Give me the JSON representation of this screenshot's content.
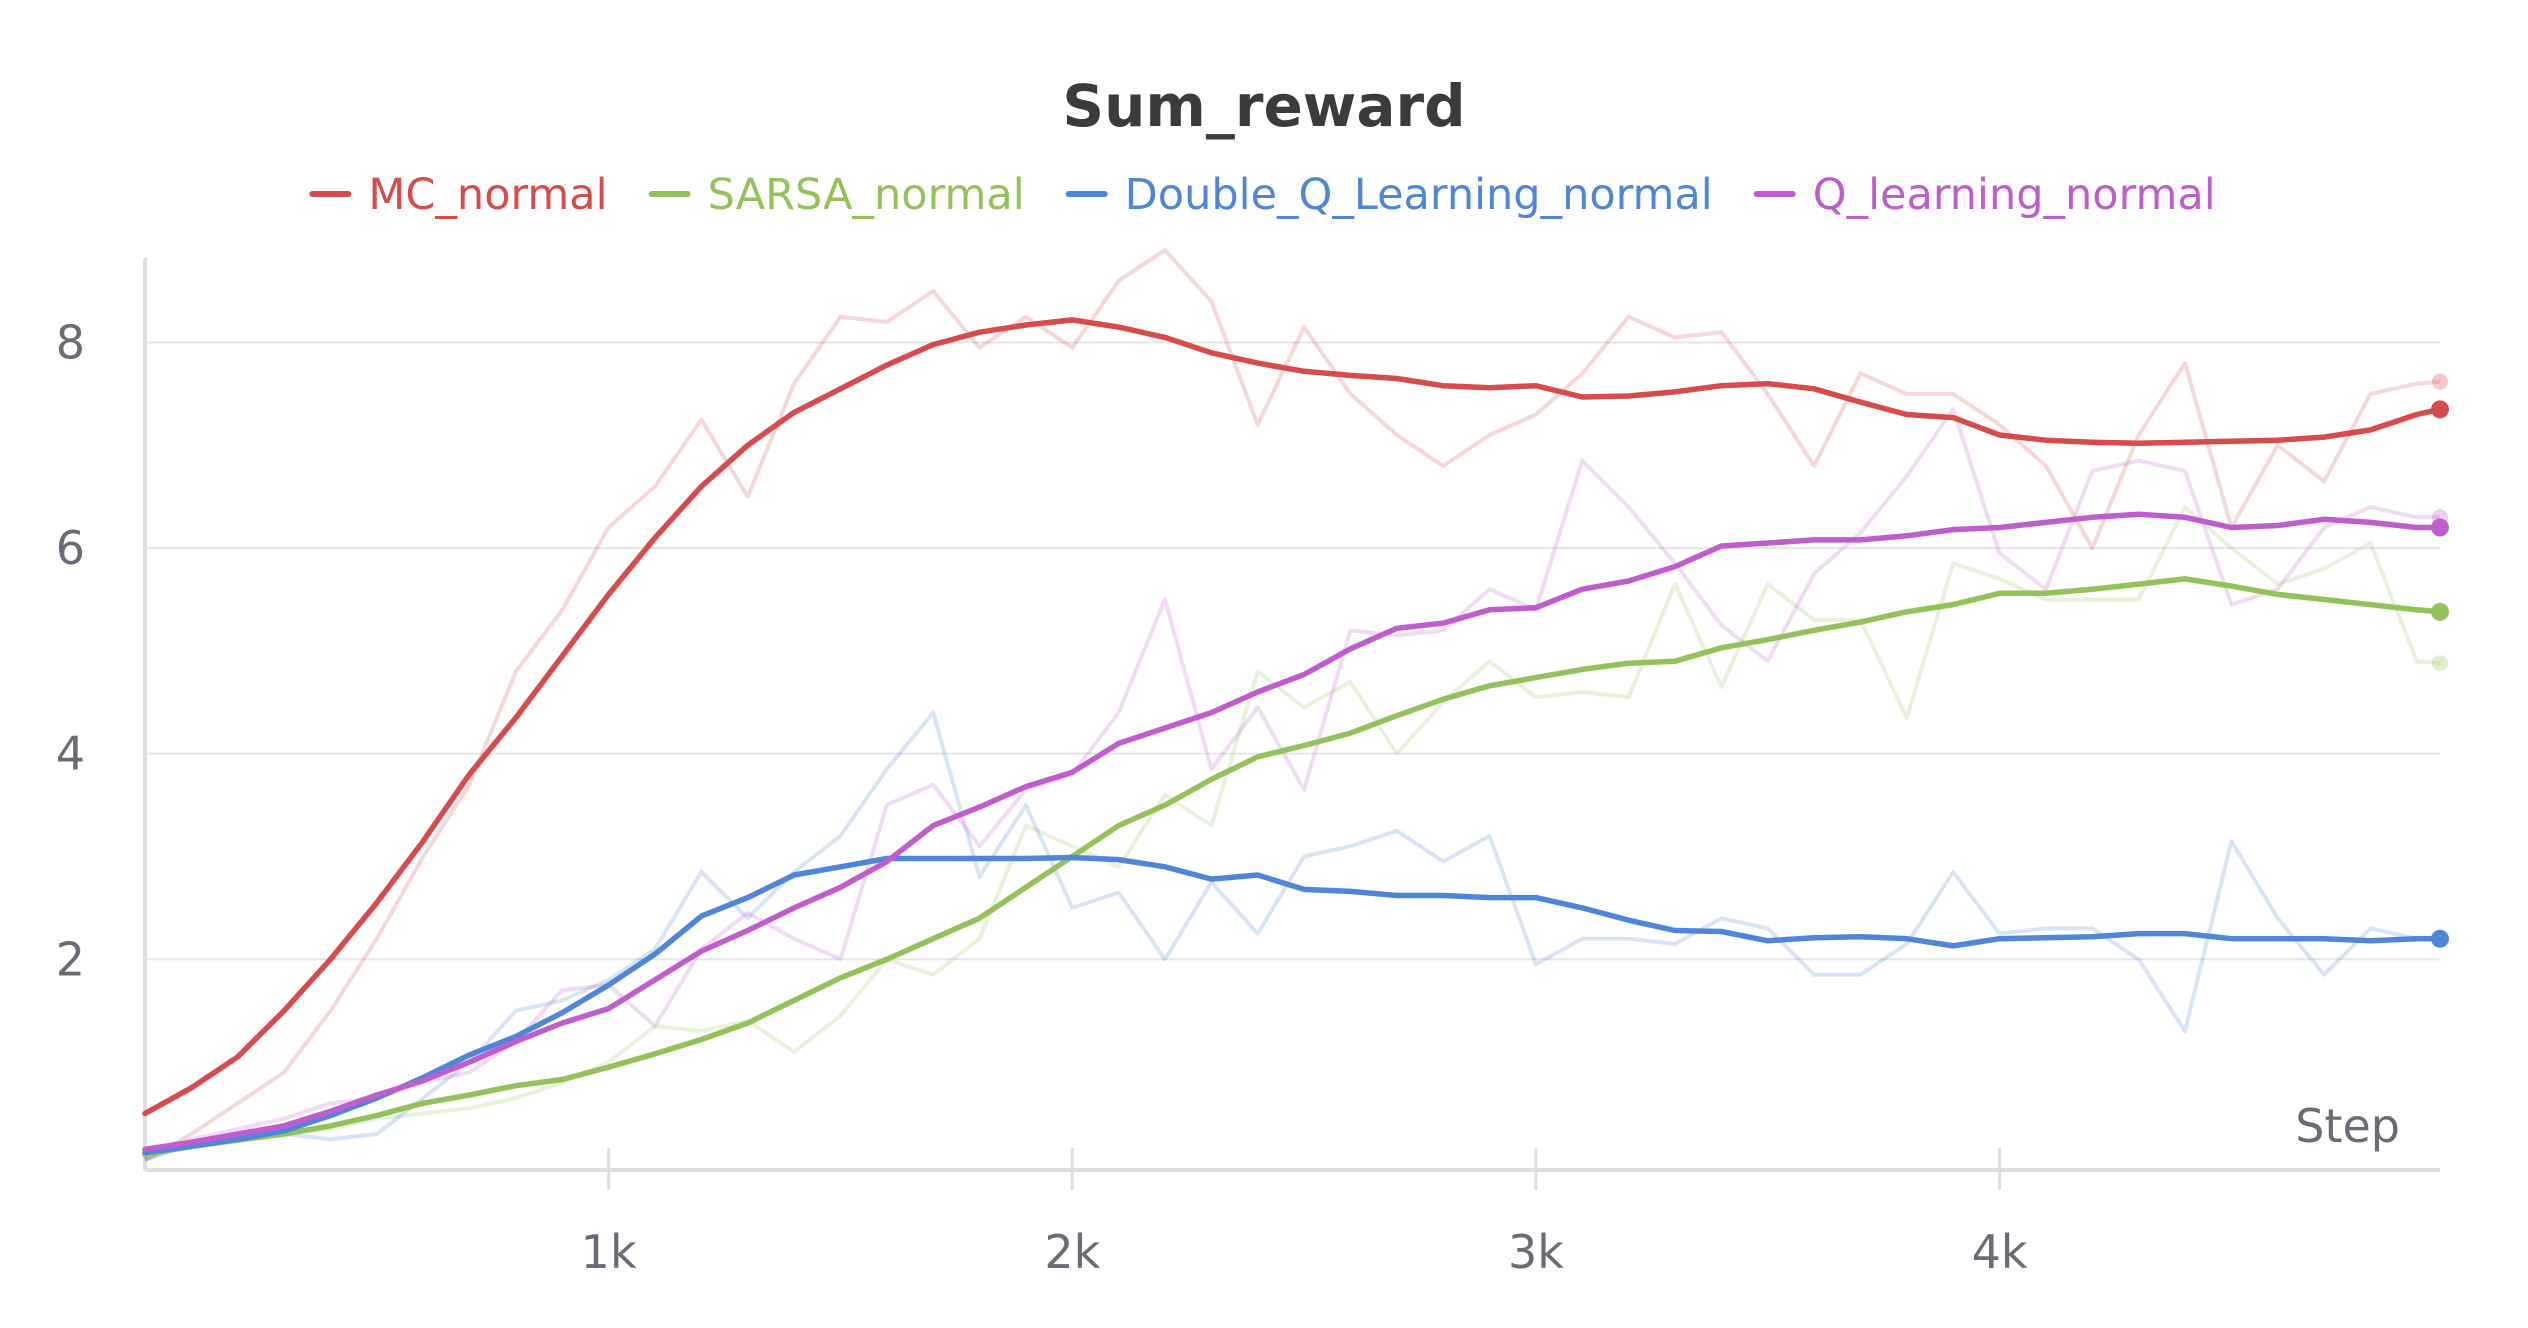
{
  "chart_data": {
    "type": "line",
    "title": "Sum_reward",
    "xlabel": "Step",
    "ylabel": "",
    "xlim": [
      0,
      4950
    ],
    "ylim": [
      -0.05,
      8.9
    ],
    "x_ticks": [
      1000,
      2000,
      3000,
      4000
    ],
    "x_tick_labels": [
      "1k",
      "2k",
      "3k",
      "4k"
    ],
    "y_ticks": [
      2,
      4,
      6,
      8
    ],
    "y_tick_labels": [
      "2",
      "4",
      "6",
      "8"
    ],
    "grid": "horizontal",
    "legend_position": "top",
    "x": [
      0,
      100,
      200,
      300,
      400,
      500,
      600,
      700,
      800,
      900,
      1000,
      1100,
      1200,
      1300,
      1400,
      1500,
      1600,
      1700,
      1800,
      1900,
      2000,
      2100,
      2200,
      2300,
      2400,
      2500,
      2600,
      2700,
      2800,
      2900,
      3000,
      3100,
      3200,
      3300,
      3400,
      3500,
      3600,
      3700,
      3800,
      3900,
      4000,
      4100,
      4200,
      4300,
      4400,
      4500,
      4600,
      4700,
      4800,
      4900,
      4950
    ],
    "series": [
      {
        "name": "MC_normal",
        "color": "#d64b4b",
        "smoothed": [
          0.5,
          0.75,
          1.05,
          1.5,
          2.0,
          2.55,
          3.15,
          3.8,
          4.35,
          4.95,
          5.55,
          6.1,
          6.6,
          7.0,
          7.32,
          7.55,
          7.78,
          7.98,
          8.1,
          8.17,
          8.22,
          8.15,
          8.05,
          7.9,
          7.8,
          7.72,
          7.68,
          7.65,
          7.58,
          7.56,
          7.58,
          7.47,
          7.48,
          7.52,
          7.58,
          7.6,
          7.55,
          7.42,
          7.3,
          7.27,
          7.1,
          7.05,
          7.03,
          7.02,
          7.03,
          7.04,
          7.05,
          7.08,
          7.15,
          7.3,
          7.35
        ],
        "raw": [
          0.05,
          0.3,
          0.6,
          0.9,
          1.5,
          2.2,
          3.0,
          3.7,
          4.8,
          5.4,
          6.2,
          6.6,
          7.25,
          6.5,
          7.6,
          8.25,
          8.2,
          8.5,
          7.95,
          8.25,
          7.95,
          8.6,
          8.9,
          8.4,
          7.2,
          8.15,
          7.5,
          7.1,
          6.8,
          7.1,
          7.3,
          7.7,
          8.25,
          8.05,
          8.1,
          7.5,
          6.8,
          7.7,
          7.5,
          7.5,
          7.2,
          6.8,
          6.0,
          7.1,
          7.8,
          6.2,
          7.0,
          6.65,
          7.5,
          7.6,
          7.62
        ]
      },
      {
        "name": "SARSA_normal",
        "color": "#93c25a",
        "smoothed": [
          0.1,
          0.18,
          0.24,
          0.3,
          0.38,
          0.48,
          0.6,
          0.68,
          0.77,
          0.83,
          0.95,
          1.08,
          1.22,
          1.38,
          1.6,
          1.82,
          2.0,
          2.2,
          2.4,
          2.7,
          3.0,
          3.3,
          3.5,
          3.75,
          3.97,
          4.08,
          4.2,
          4.37,
          4.53,
          4.66,
          4.74,
          4.82,
          4.88,
          4.9,
          5.03,
          5.11,
          5.2,
          5.28,
          5.38,
          5.45,
          5.56,
          5.56,
          5.6,
          5.65,
          5.7,
          5.63,
          5.55,
          5.5,
          5.45,
          5.4,
          5.38
        ],
        "raw": [
          0.05,
          0.2,
          0.25,
          0.3,
          0.35,
          0.45,
          0.5,
          0.55,
          0.65,
          0.8,
          1.0,
          1.35,
          1.3,
          1.4,
          1.1,
          1.45,
          2.0,
          1.85,
          2.2,
          3.3,
          3.1,
          2.9,
          3.6,
          3.3,
          4.8,
          4.45,
          4.7,
          4.0,
          4.5,
          4.9,
          4.55,
          4.6,
          4.55,
          5.65,
          4.65,
          5.65,
          5.3,
          5.3,
          4.35,
          5.85,
          5.7,
          5.5,
          5.5,
          5.5,
          6.4,
          6.0,
          5.65,
          5.8,
          6.05,
          4.9,
          4.88
        ]
      },
      {
        "name": "Double_Q_Learning_normal",
        "color": "#4f86d8",
        "smoothed": [
          0.12,
          0.18,
          0.25,
          0.33,
          0.48,
          0.65,
          0.85,
          1.07,
          1.25,
          1.48,
          1.75,
          2.05,
          2.42,
          2.6,
          2.82,
          2.9,
          2.98,
          2.98,
          2.98,
          2.98,
          2.99,
          2.97,
          2.9,
          2.78,
          2.82,
          2.68,
          2.66,
          2.62,
          2.62,
          2.6,
          2.6,
          2.5,
          2.38,
          2.28,
          2.27,
          2.18,
          2.21,
          2.22,
          2.2,
          2.13,
          2.2,
          2.21,
          2.22,
          2.25,
          2.25,
          2.2,
          2.2,
          2.2,
          2.18,
          2.2,
          2.2
        ],
        "raw": [
          0.05,
          0.2,
          0.25,
          0.3,
          0.25,
          0.3,
          0.65,
          1.0,
          1.5,
          1.6,
          1.8,
          2.1,
          2.85,
          2.4,
          2.85,
          3.2,
          3.85,
          4.4,
          2.8,
          3.5,
          2.5,
          2.65,
          2.0,
          2.75,
          2.25,
          3.0,
          3.1,
          3.25,
          2.95,
          3.2,
          1.95,
          2.2,
          2.2,
          2.15,
          2.4,
          2.3,
          1.85,
          1.85,
          2.15,
          2.85,
          2.25,
          2.3,
          2.3,
          2.0,
          1.3,
          3.15,
          2.4,
          1.85,
          2.3,
          2.2,
          2.2
        ]
      },
      {
        "name": "Q_learning_normal",
        "color": "#c05dcc",
        "smoothed": [
          0.15,
          0.22,
          0.3,
          0.38,
          0.52,
          0.68,
          0.82,
          1.0,
          1.2,
          1.38,
          1.52,
          1.8,
          2.08,
          2.28,
          2.5,
          2.7,
          2.95,
          3.3,
          3.48,
          3.68,
          3.82,
          4.1,
          4.25,
          4.4,
          4.6,
          4.77,
          5.02,
          5.22,
          5.27,
          5.4,
          5.42,
          5.6,
          5.68,
          5.82,
          6.02,
          6.05,
          6.08,
          6.08,
          6.12,
          6.18,
          6.2,
          6.25,
          6.3,
          6.33,
          6.3,
          6.2,
          6.22,
          6.28,
          6.25,
          6.2,
          6.2
        ],
        "raw": [
          0.05,
          0.25,
          0.35,
          0.45,
          0.6,
          0.65,
          0.8,
          0.9,
          1.2,
          1.7,
          1.75,
          1.35,
          2.1,
          2.45,
          2.2,
          2.0,
          3.5,
          3.7,
          3.1,
          3.65,
          3.8,
          4.4,
          5.5,
          3.85,
          4.45,
          3.65,
          5.2,
          5.15,
          5.2,
          5.6,
          5.4,
          6.85,
          6.4,
          5.85,
          5.25,
          4.9,
          5.75,
          6.15,
          6.7,
          7.35,
          5.95,
          5.6,
          6.75,
          6.85,
          6.75,
          5.45,
          5.6,
          6.2,
          6.4,
          6.3,
          6.3
        ]
      }
    ]
  }
}
